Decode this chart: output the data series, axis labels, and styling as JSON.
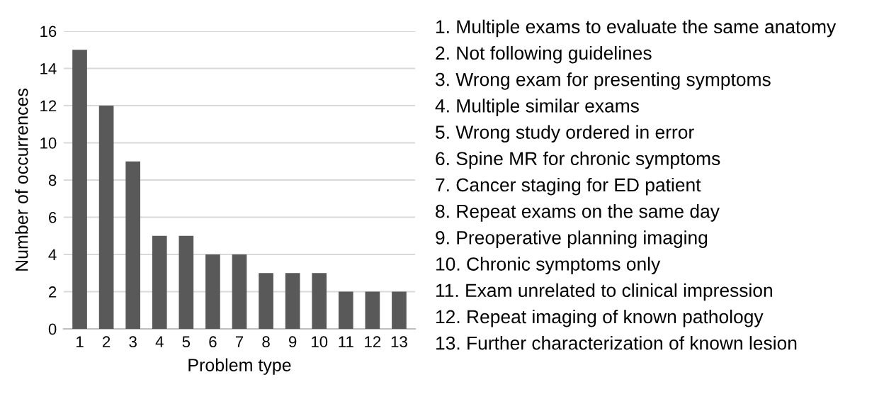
{
  "chart_data": {
    "type": "bar",
    "xlabel": "Problem type",
    "ylabel": "Number of occurrences",
    "categories": [
      "1",
      "2",
      "3",
      "4",
      "5",
      "6",
      "7",
      "8",
      "9",
      "10",
      "11",
      "12",
      "13"
    ],
    "values": [
      15,
      12,
      9,
      5,
      5,
      4,
      4,
      3,
      3,
      3,
      2,
      2,
      2
    ],
    "color": "#595959",
    "ylim": [
      0,
      16
    ],
    "yticks": [
      0,
      2,
      4,
      6,
      8,
      10,
      12,
      14,
      16
    ],
    "grid": "y",
    "annotations": [
      "1. Multiple exams to evaluate the same anatomy",
      "2. Not following guidelines",
      "3. Wrong exam for presenting symptoms",
      "4. Multiple similar exams",
      "5. Wrong study ordered in error",
      "6. Spine MR for chronic symptoms",
      "7. Cancer staging for ED patient",
      "8. Repeat exams on the same day",
      "9. Preoperative planning imaging",
      "10. Chronic symptoms only",
      "11. Exam unrelated to clinical impression",
      "12. Repeat imaging of known pathology",
      "13. Further characterization of known lesion"
    ]
  }
}
